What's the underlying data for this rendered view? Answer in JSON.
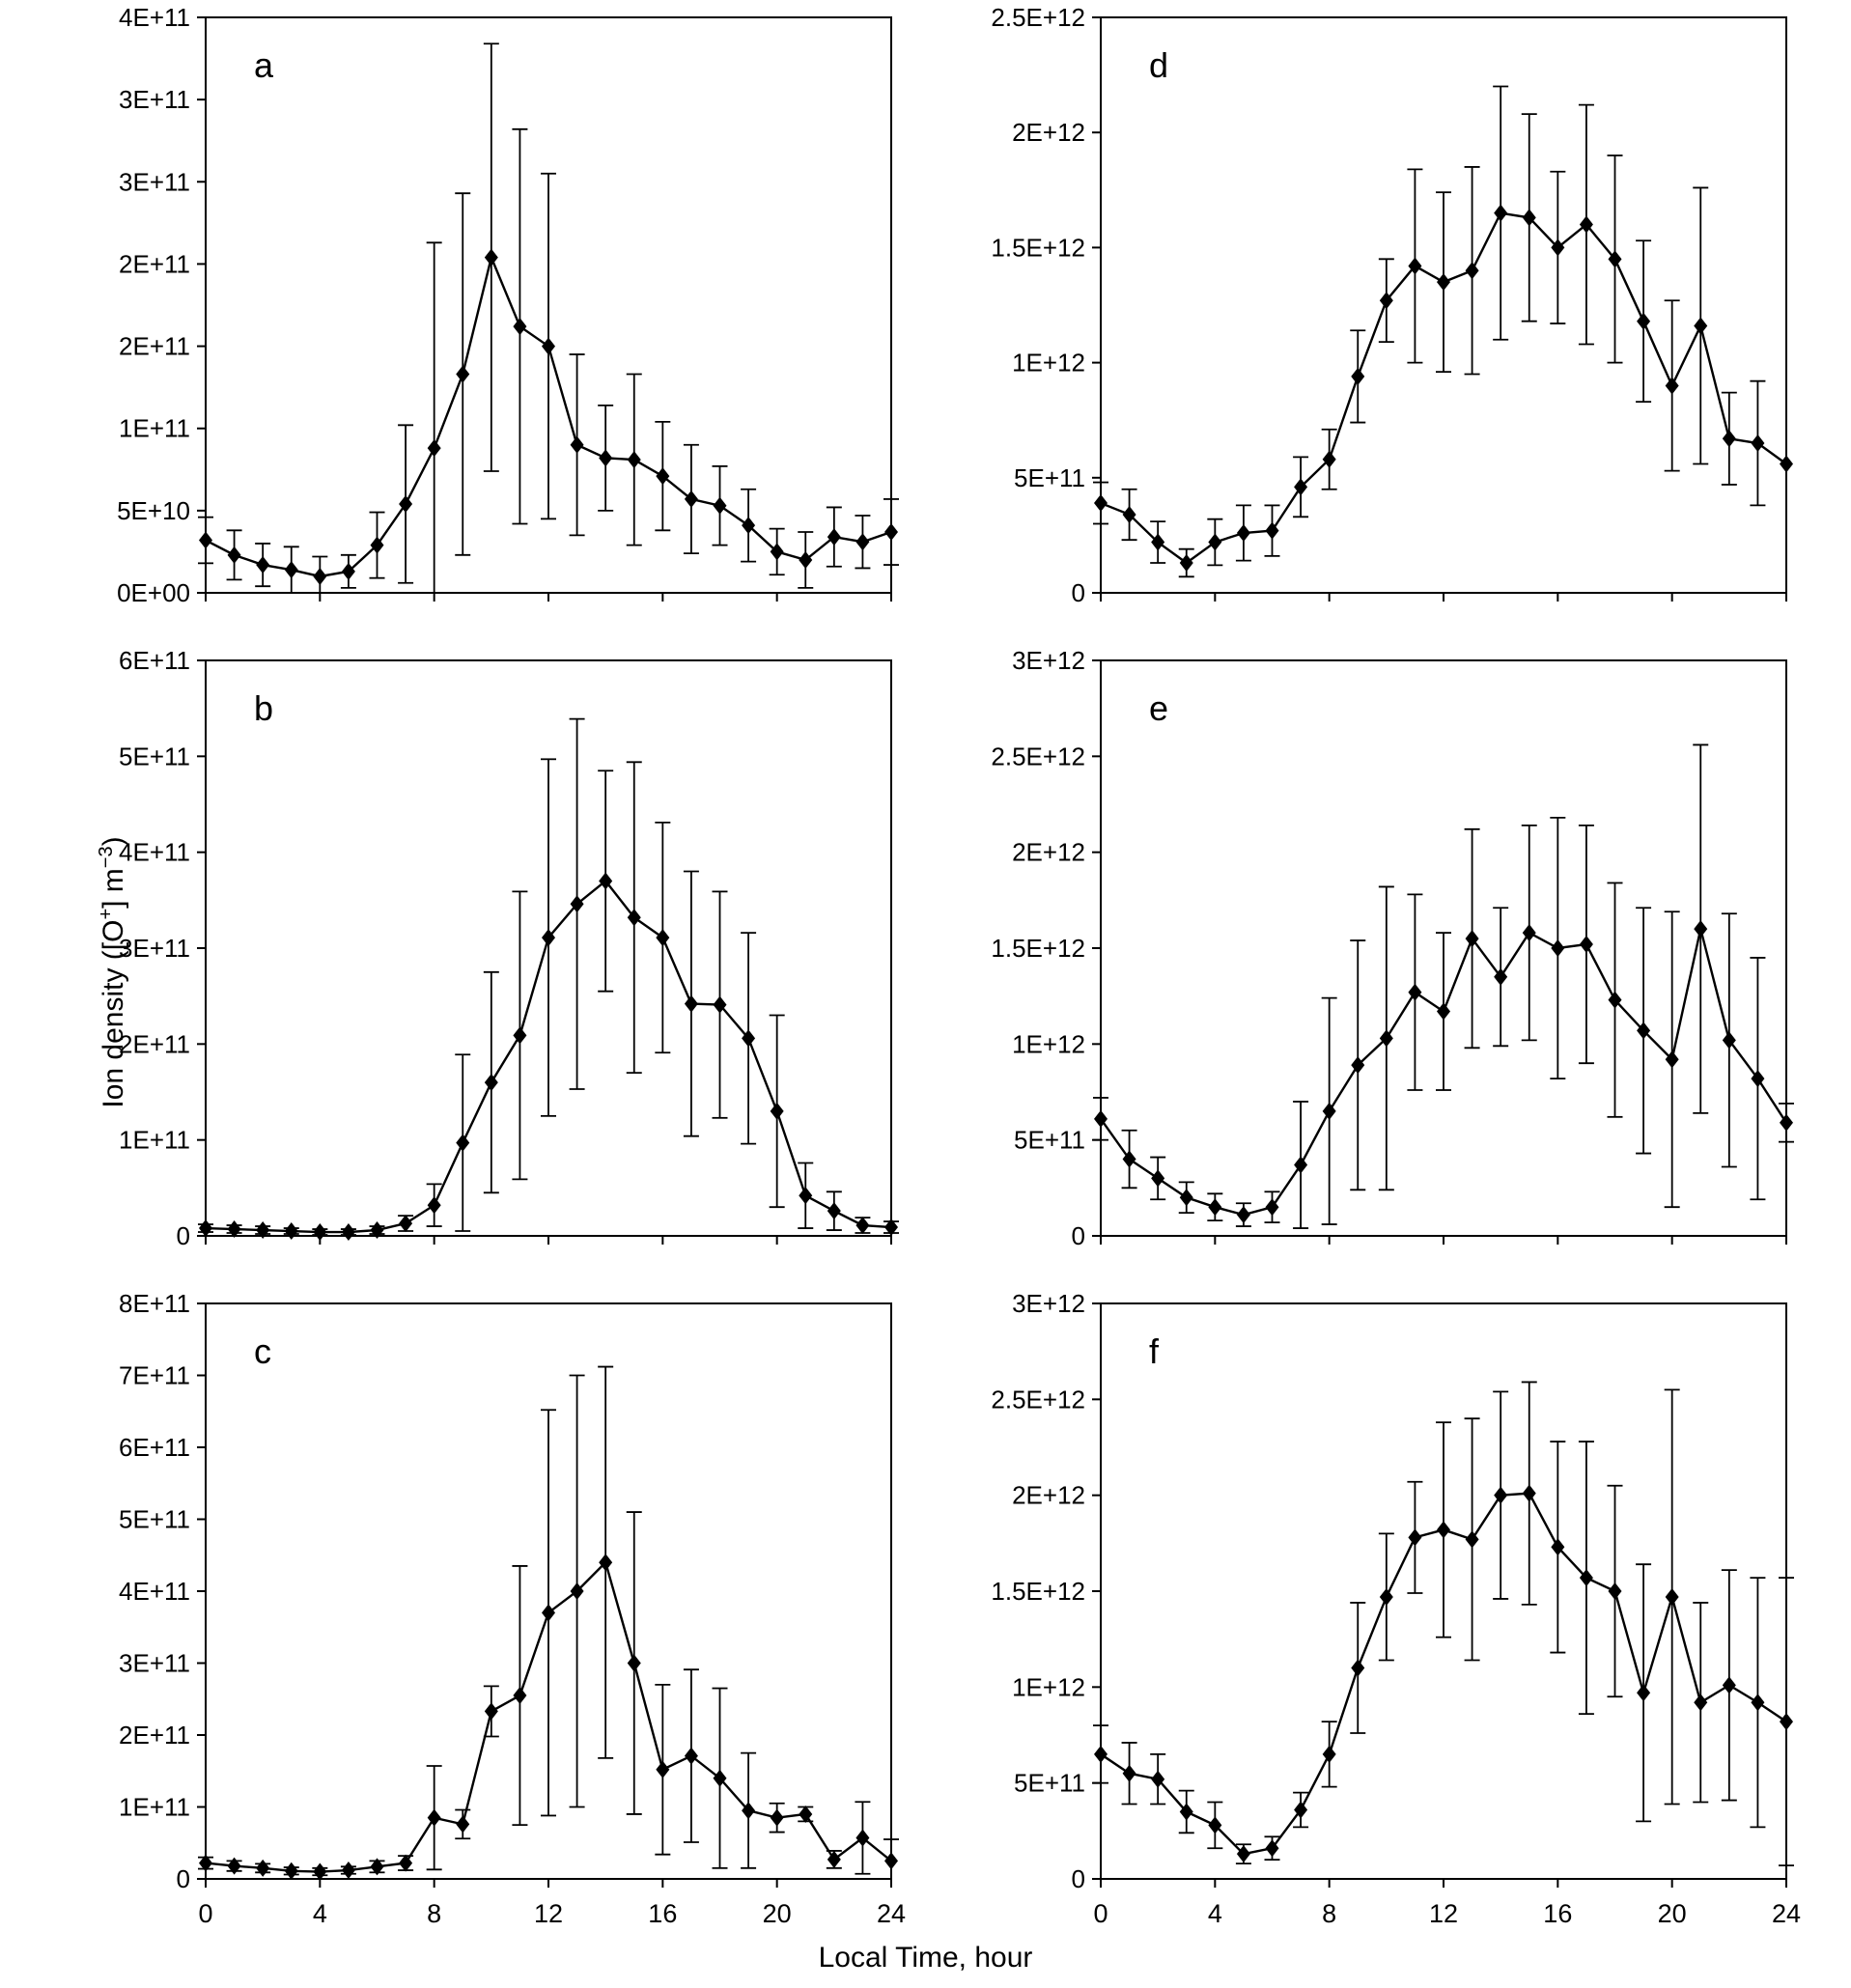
{
  "figure": {
    "xlabel": "Local Time, hour",
    "ylabel_plain": "Ion density ([O+] m-3)",
    "ylabel_parts": [
      {
        "text": "Ion density ([O"
      },
      {
        "sup": "+"
      },
      {
        "text": "] m"
      },
      {
        "sup": "−3"
      },
      {
        "text": ")"
      }
    ],
    "line_color": "#000000",
    "marker": "diamond",
    "error_bars": true
  },
  "chart_data": [
    {
      "type": "line",
      "panel": "a",
      "x": [
        0,
        1,
        2,
        3,
        4,
        5,
        6,
        7,
        8,
        9,
        10,
        11,
        12,
        13,
        14,
        15,
        16,
        17,
        18,
        19,
        20,
        21,
        22,
        23,
        24
      ],
      "values": [
        32000000000.0,
        23000000000.0,
        17000000000.0,
        14000000000.0,
        10000000000.0,
        13000000000.0,
        29000000000.0,
        54000000000.0,
        88000000000.0,
        133000000000.0,
        204000000000.0,
        162000000000.0,
        150000000000.0,
        90000000000.0,
        82000000000.0,
        81000000000.0,
        71000000000.0,
        57000000000.0,
        53000000000.0,
        41000000000.0,
        25000000000.0,
        20000000000.0,
        34000000000.0,
        31000000000.0,
        37000000000.0
      ],
      "errors": [
        14000000000.0,
        15000000000.0,
        13000000000.0,
        14000000000.0,
        12000000000.0,
        10000000000.0,
        20000000000.0,
        48000000000.0,
        125000000000.0,
        110000000000.0,
        130000000000.0,
        120000000000.0,
        105000000000.0,
        55000000000.0,
        32000000000.0,
        52000000000.0,
        33000000000.0,
        33000000000.0,
        24000000000.0,
        22000000000.0,
        14000000000.0,
        17000000000.0,
        18000000000.0,
        16000000000.0,
        20000000000.0
      ],
      "ylim": [
        0,
        350000000000.0
      ],
      "yticks": [
        {
          "v": 0,
          "label": "0E+00"
        },
        {
          "v": 50000000000.0,
          "label": "5E+10"
        },
        {
          "v": 100000000000.0,
          "label": "1E+11"
        },
        {
          "v": 150000000000.0,
          "label": "2E+11"
        },
        {
          "v": 200000000000.0,
          "label": "2E+11"
        },
        {
          "v": 250000000000.0,
          "label": "3E+11"
        },
        {
          "v": 300000000000.0,
          "label": "3E+11"
        },
        {
          "v": 350000000000.0,
          "label": "4E+11"
        }
      ],
      "xticks": [
        0,
        4,
        8,
        12,
        16,
        20,
        24
      ],
      "show_xtick_labels": false
    },
    {
      "type": "line",
      "panel": "b",
      "x": [
        0,
        1,
        2,
        3,
        4,
        5,
        6,
        7,
        8,
        9,
        10,
        11,
        12,
        13,
        14,
        15,
        16,
        17,
        18,
        19,
        20,
        21,
        22,
        23,
        24
      ],
      "values": [
        8000000000.0,
        7000000000.0,
        6000000000.0,
        5000000000.0,
        4000000000.0,
        4000000000.0,
        6000000000.0,
        13000000000.0,
        32000000000.0,
        97000000000.0,
        160000000000.0,
        209000000000.0,
        311000000000.0,
        346000000000.0,
        370000000000.0,
        332000000000.0,
        311000000000.0,
        242000000000.0,
        241000000000.0,
        206000000000.0,
        130000000000.0,
        42000000000.0,
        26000000000.0,
        11000000000.0,
        9000000000.0
      ],
      "errors": [
        4000000000.0,
        4000000000.0,
        4000000000.0,
        3000000000.0,
        3000000000.0,
        3000000000.0,
        4000000000.0,
        8000000000.0,
        22000000000.0,
        92000000000.0,
        115000000000.0,
        150000000000.0,
        186000000000.0,
        193000000000.0,
        115000000000.0,
        162000000000.0,
        120000000000.0,
        138000000000.0,
        118000000000.0,
        110000000000.0,
        100000000000.0,
        34000000000.0,
        20000000000.0,
        8000000000.0,
        6000000000.0
      ],
      "ylim": [
        0,
        600000000000.0
      ],
      "yticks": [
        {
          "v": 0,
          "label": "0"
        },
        {
          "v": 100000000000.0,
          "label": "1E+11"
        },
        {
          "v": 200000000000.0,
          "label": "2E+11"
        },
        {
          "v": 300000000000.0,
          "label": "3E+11"
        },
        {
          "v": 400000000000.0,
          "label": "4E+11"
        },
        {
          "v": 500000000000.0,
          "label": "5E+11"
        },
        {
          "v": 600000000000.0,
          "label": "6E+11"
        }
      ],
      "xticks": [
        0,
        4,
        8,
        12,
        16,
        20,
        24
      ],
      "show_xtick_labels": false
    },
    {
      "type": "line",
      "panel": "c",
      "x": [
        0,
        1,
        2,
        3,
        4,
        5,
        6,
        7,
        8,
        9,
        10,
        11,
        12,
        13,
        14,
        15,
        16,
        17,
        18,
        19,
        20,
        21,
        22,
        23,
        24
      ],
      "values": [
        22000000000.0,
        18000000000.0,
        15000000000.0,
        11000000000.0,
        10000000000.0,
        12000000000.0,
        17000000000.0,
        22000000000.0,
        85000000000.0,
        76000000000.0,
        233000000000.0,
        255000000000.0,
        370000000000.0,
        400000000000.0,
        440000000000.0,
        300000000000.0,
        152000000000.0,
        171000000000.0,
        140000000000.0,
        95000000000.0,
        85000000000.0,
        90000000000.0,
        27000000000.0,
        57000000000.0,
        25000000000.0
      ],
      "errors": [
        8000000000.0,
        7000000000.0,
        6000000000.0,
        5000000000.0,
        5000000000.0,
        5000000000.0,
        8000000000.0,
        10000000000.0,
        72000000000.0,
        20000000000.0,
        35000000000.0,
        180000000000.0,
        282000000000.0,
        300000000000.0,
        272000000000.0,
        210000000000.0,
        118000000000.0,
        120000000000.0,
        125000000000.0,
        80000000000.0,
        20000000000.0,
        10000000000.0,
        12000000000.0,
        50000000000.0,
        30000000000.0
      ],
      "ylim": [
        0,
        800000000000.0
      ],
      "yticks": [
        {
          "v": 0,
          "label": "0"
        },
        {
          "v": 100000000000.0,
          "label": "1E+11"
        },
        {
          "v": 200000000000.0,
          "label": "2E+11"
        },
        {
          "v": 300000000000.0,
          "label": "3E+11"
        },
        {
          "v": 400000000000.0,
          "label": "4E+11"
        },
        {
          "v": 500000000000.0,
          "label": "5E+11"
        },
        {
          "v": 600000000000.0,
          "label": "6E+11"
        },
        {
          "v": 700000000000.0,
          "label": "7E+11"
        },
        {
          "v": 800000000000.0,
          "label": "8E+11"
        }
      ],
      "xticks": [
        0,
        4,
        8,
        12,
        16,
        20,
        24
      ],
      "show_xtick_labels": true
    },
    {
      "type": "line",
      "panel": "d",
      "x": [
        0,
        1,
        2,
        3,
        4,
        5,
        6,
        7,
        8,
        9,
        10,
        11,
        12,
        13,
        14,
        15,
        16,
        17,
        18,
        19,
        20,
        21,
        22,
        23,
        24
      ],
      "values": [
        390000000000.0,
        340000000000.0,
        220000000000.0,
        130000000000.0,
        220000000000.0,
        260000000000.0,
        270000000000.0,
        460000000000.0,
        580000000000.0,
        940000000000.0,
        1270000000000.0,
        1420000000000.0,
        1350000000000.0,
        1400000000000.0,
        1650000000000.0,
        1630000000000.0,
        1500000000000.0,
        1600000000000.0,
        1450000000000.0,
        1180000000000.0,
        900000000000.0,
        1160000000000.0,
        670000000000.0,
        650000000000.0,
        560000000000.0
      ],
      "errors": [
        90000000000.0,
        110000000000.0,
        90000000000.0,
        60000000000.0,
        100000000000.0,
        120000000000.0,
        110000000000.0,
        130000000000.0,
        130000000000.0,
        200000000000.0,
        180000000000.0,
        420000000000.0,
        390000000000.0,
        450000000000.0,
        550000000000.0,
        450000000000.0,
        330000000000.0,
        520000000000.0,
        450000000000.0,
        350000000000.0,
        370000000000.0,
        600000000000.0,
        200000000000.0,
        270000000000.0,
        null
      ],
      "ylim": [
        0,
        2500000000000.0
      ],
      "yticks": [
        {
          "v": 0,
          "label": "0"
        },
        {
          "v": 500000000000.0,
          "label": "5E+11"
        },
        {
          "v": 1000000000000.0,
          "label": "1E+12"
        },
        {
          "v": 1500000000000.0,
          "label": "1.5E+12"
        },
        {
          "v": 2000000000000.0,
          "label": "2E+12"
        },
        {
          "v": 2500000000000.0,
          "label": "2.5E+12"
        }
      ],
      "xticks": [
        0,
        4,
        8,
        12,
        16,
        20,
        24
      ],
      "show_xtick_labels": false
    },
    {
      "type": "line",
      "panel": "e",
      "x": [
        0,
        1,
        2,
        3,
        4,
        5,
        6,
        7,
        8,
        9,
        10,
        11,
        12,
        13,
        14,
        15,
        16,
        17,
        18,
        19,
        20,
        21,
        22,
        23,
        24
      ],
      "values": [
        610000000000.0,
        400000000000.0,
        300000000000.0,
        200000000000.0,
        150000000000.0,
        110000000000.0,
        150000000000.0,
        370000000000.0,
        650000000000.0,
        890000000000.0,
        1030000000000.0,
        1270000000000.0,
        1170000000000.0,
        1550000000000.0,
        1350000000000.0,
        1580000000000.0,
        1500000000000.0,
        1520000000000.0,
        1230000000000.0,
        1070000000000.0,
        920000000000.0,
        1600000000000.0,
        1020000000000.0,
        820000000000.0,
        590000000000.0
      ],
      "errors": [
        110000000000.0,
        150000000000.0,
        110000000000.0,
        80000000000.0,
        70000000000.0,
        60000000000.0,
        80000000000.0,
        330000000000.0,
        590000000000.0,
        650000000000.0,
        790000000000.0,
        510000000000.0,
        410000000000.0,
        570000000000.0,
        360000000000.0,
        560000000000.0,
        680000000000.0,
        620000000000.0,
        610000000000.0,
        640000000000.0,
        770000000000.0,
        960000000000.0,
        660000000000.0,
        630000000000.0,
        100000000000.0
      ],
      "ylim": [
        0,
        3000000000000.0
      ],
      "yticks": [
        {
          "v": 0,
          "label": "0"
        },
        {
          "v": 500000000000.0,
          "label": "5E+11"
        },
        {
          "v": 1000000000000.0,
          "label": "1E+12"
        },
        {
          "v": 1500000000000.0,
          "label": "1.5E+12"
        },
        {
          "v": 2000000000000.0,
          "label": "2E+12"
        },
        {
          "v": 2500000000000.0,
          "label": "2.5E+12"
        },
        {
          "v": 3000000000000.0,
          "label": "3E+12"
        }
      ],
      "xticks": [
        0,
        4,
        8,
        12,
        16,
        20,
        24
      ],
      "show_xtick_labels": false
    },
    {
      "type": "line",
      "panel": "f",
      "x": [
        0,
        1,
        2,
        3,
        4,
        5,
        6,
        7,
        8,
        9,
        10,
        11,
        12,
        13,
        14,
        15,
        16,
        17,
        18,
        19,
        20,
        21,
        22,
        23,
        24
      ],
      "values": [
        650000000000.0,
        550000000000.0,
        520000000000.0,
        350000000000.0,
        280000000000.0,
        130000000000.0,
        160000000000.0,
        360000000000.0,
        650000000000.0,
        1100000000000.0,
        1470000000000.0,
        1780000000000.0,
        1820000000000.0,
        1770000000000.0,
        2000000000000.0,
        2010000000000.0,
        1730000000000.0,
        1570000000000.0,
        1500000000000.0,
        970000000000.0,
        1470000000000.0,
        920000000000.0,
        1010000000000.0,
        920000000000.0,
        820000000000.0
      ],
      "errors": [
        150000000000.0,
        160000000000.0,
        130000000000.0,
        110000000000.0,
        120000000000.0,
        50000000000.0,
        60000000000.0,
        90000000000.0,
        170000000000.0,
        340000000000.0,
        330000000000.0,
        290000000000.0,
        560000000000.0,
        630000000000.0,
        540000000000.0,
        580000000000.0,
        550000000000.0,
        710000000000.0,
        550000000000.0,
        670000000000.0,
        1080000000000.0,
        520000000000.0,
        600000000000.0,
        650000000000.0,
        750000000000.0
      ],
      "ylim": [
        0,
        3000000000000.0
      ],
      "yticks": [
        {
          "v": 0,
          "label": "0"
        },
        {
          "v": 500000000000.0,
          "label": "5E+11"
        },
        {
          "v": 1000000000000.0,
          "label": "1E+12"
        },
        {
          "v": 1500000000000.0,
          "label": "1.5E+12"
        },
        {
          "v": 2000000000000.0,
          "label": "2E+12"
        },
        {
          "v": 2500000000000.0,
          "label": "2.5E+12"
        },
        {
          "v": 3000000000000.0,
          "label": "3E+12"
        }
      ],
      "xticks": [
        0,
        4,
        8,
        12,
        16,
        20,
        24
      ],
      "show_xtick_labels": true
    }
  ]
}
